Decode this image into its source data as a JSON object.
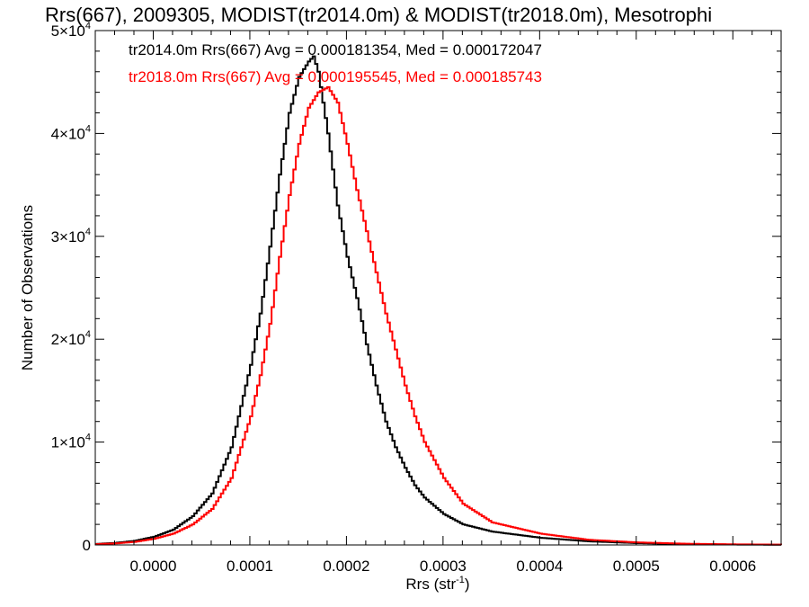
{
  "chart_data": {
    "type": "line",
    "title": "Rrs(667), 2009305, MODIST(tr2014.0m) & MODIST(tr2018.0m), Mesotrophi",
    "xlabel_main": "Rrs (str",
    "xlabel_sup": "-1",
    "xlabel_close": ")",
    "ylabel": "Number of Observations",
    "xlim": [
      -6e-05,
      0.00065
    ],
    "ylim": [
      0,
      50000
    ],
    "x_ticks": [
      {
        "value": 0.0,
        "label": "0.0000"
      },
      {
        "value": 0.0001,
        "label": "0.0001"
      },
      {
        "value": 0.0002,
        "label": "0.0002"
      },
      {
        "value": 0.0003,
        "label": "0.0003"
      },
      {
        "value": 0.0004,
        "label": "0.0004"
      },
      {
        "value": 0.0005,
        "label": "0.0005"
      },
      {
        "value": 0.0006,
        "label": "0.0006"
      }
    ],
    "y_ticks": [
      {
        "value": 0,
        "mant": "0",
        "exp": ""
      },
      {
        "value": 10000,
        "mant": "1×10",
        "exp": "4"
      },
      {
        "value": 20000,
        "mant": "2×10",
        "exp": "4"
      },
      {
        "value": 30000,
        "mant": "3×10",
        "exp": "4"
      },
      {
        "value": 40000,
        "mant": "4×10",
        "exp": "4"
      },
      {
        "value": 50000,
        "mant": "5×10",
        "exp": "4"
      }
    ],
    "series": [
      {
        "color": "#000000",
        "x": [
          -6e-05,
          -4e-05,
          -2e-05,
          0.0,
          2e-05,
          4e-05,
          6e-05,
          8e-05,
          0.0001,
          0.00011,
          0.00012,
          0.00013,
          0.00014,
          0.00015,
          0.00016,
          0.000165,
          0.00017,
          0.00018,
          0.00019,
          0.0002,
          0.00021,
          0.00022,
          0.00023,
          0.00024,
          0.00025,
          0.00026,
          0.00027,
          0.00028,
          0.0003,
          0.00032,
          0.00035,
          0.0004,
          0.00045,
          0.0005,
          0.00055,
          0.0006,
          0.00065
        ],
        "y": [
          100,
          200,
          400,
          800,
          1500,
          2800,
          5000,
          9500,
          17500,
          22500,
          29000,
          36000,
          42000,
          45500,
          47000,
          47500,
          46000,
          40000,
          33000,
          28000,
          24000,
          19500,
          15500,
          12000,
          9500,
          7500,
          5800,
          4600,
          3000,
          2000,
          1300,
          700,
          350,
          180,
          80,
          40,
          20
        ]
      },
      {
        "color": "#ff0000",
        "x": [
          -6e-05,
          -4e-05,
          -2e-05,
          0.0,
          2e-05,
          4e-05,
          6e-05,
          8e-05,
          0.0001,
          0.00011,
          0.00012,
          0.00013,
          0.00014,
          0.00015,
          0.00016,
          0.00017,
          0.00018,
          0.00019,
          0.0002,
          0.00021,
          0.00022,
          0.00023,
          0.00024,
          0.00025,
          0.00026,
          0.00027,
          0.00028,
          0.0003,
          0.00032,
          0.00035,
          0.0004,
          0.00045,
          0.0005,
          0.00055,
          0.0006,
          0.00065
        ],
        "y": [
          80,
          150,
          300,
          600,
          1100,
          2000,
          3500,
          6500,
          12500,
          16500,
          21500,
          28000,
          34000,
          39000,
          42500,
          44000,
          44500,
          43000,
          39000,
          34500,
          30500,
          26500,
          22500,
          19000,
          15500,
          12500,
          10000,
          6500,
          4000,
          2200,
          1100,
          500,
          250,
          120,
          60,
          30
        ]
      }
    ],
    "legend": [
      {
        "text": "tr2014.0m Rrs(667) Avg = 0.000181354, Med = 0.000172047",
        "color": "#000000"
      },
      {
        "text": "tr2018.0m Rrs(667) Avg = 0.000195545, Med = 0.000185743",
        "color": "#ff0000"
      }
    ],
    "legend_placement": "top-left",
    "grid": false
  }
}
